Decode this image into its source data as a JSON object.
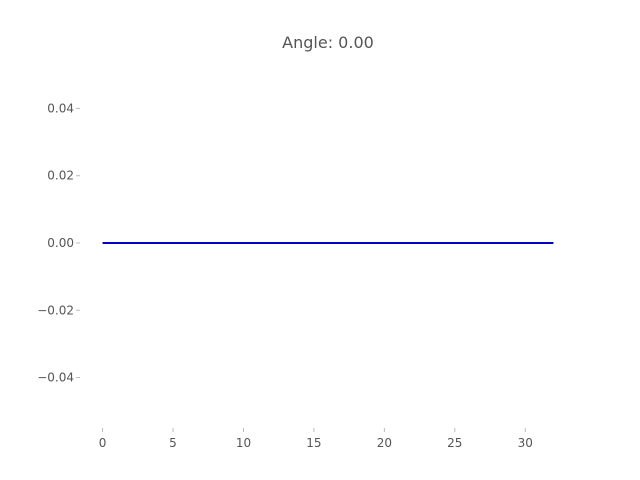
{
  "chart_data": {
    "type": "line",
    "title": "Angle: 0.00",
    "xlabel": "",
    "ylabel": "",
    "xlim": [
      -1.6,
      33.6
    ],
    "ylim": [
      -0.055,
      0.055
    ],
    "x_ticks": [
      0,
      5,
      10,
      15,
      20,
      25,
      30
    ],
    "x_tick_labels": [
      "0",
      "5",
      "10",
      "15",
      "20",
      "25",
      "30"
    ],
    "y_ticks": [
      0.04,
      0.02,
      0.0,
      -0.02,
      -0.04
    ],
    "y_tick_labels": [
      "0.04",
      "0.02",
      "0.00",
      "−0.02",
      "−0.04"
    ],
    "grid": false,
    "series": [
      {
        "color": "#0000cc",
        "x": [
          0,
          32
        ],
        "y": [
          0,
          0
        ]
      }
    ]
  }
}
